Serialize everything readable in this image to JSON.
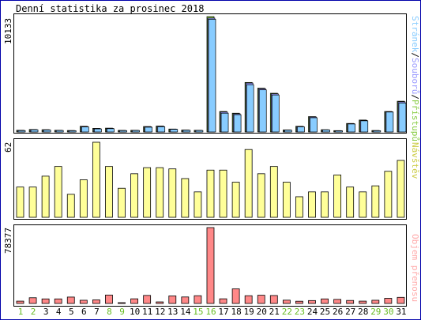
{
  "title": "Denní statistika za prosinec 2018",
  "colors": {
    "background": "#ffffff",
    "outer_border": "#0000aa",
    "panel_border": "#000000",
    "pages": "#88ccff",
    "files": "#9999ff",
    "hits": "#88cc44",
    "visits": "#ffff99",
    "volume": "#ff8888",
    "weekend_label": "#66bb22",
    "weekday_label": "#000000"
  },
  "chart_data": [
    {
      "type": "bar",
      "panel": "hits",
      "ymax_label": "10133",
      "ymax": 10133,
      "legend_right": [
        {
          "text": "Stránek",
          "color": "#88ccff"
        },
        {
          "text": "/",
          "color": "#000000"
        },
        {
          "text": "Souborů",
          "color": "#9999ff"
        },
        {
          "text": "/",
          "color": "#000000"
        },
        {
          "text": "Přístupů",
          "color": "#88cc44"
        }
      ],
      "categories": [
        "1",
        "2",
        "3",
        "4",
        "5",
        "6",
        "7",
        "8",
        "9",
        "10",
        "11",
        "12",
        "13",
        "14",
        "15",
        "16",
        "17",
        "18",
        "19",
        "20",
        "21",
        "22",
        "23",
        "24",
        "25",
        "26",
        "27",
        "28",
        "29",
        "30",
        "31"
      ],
      "series": [
        {
          "name": "Přístupů",
          "color": "#88cc44",
          "values": [
            150,
            220,
            200,
            150,
            130,
            500,
            320,
            340,
            140,
            150,
            480,
            520,
            260,
            170,
            150,
            10133,
            1800,
            1650,
            4350,
            3850,
            3400,
            180,
            500,
            1350,
            200,
            120,
            750,
            1050,
            130,
            1800,
            2700
          ]
        },
        {
          "name": "Souborů",
          "color": "#9999ff",
          "values": [
            140,
            210,
            190,
            140,
            120,
            480,
            300,
            320,
            130,
            140,
            460,
            500,
            250,
            160,
            140,
            10000,
            1750,
            1600,
            4300,
            3800,
            3350,
            170,
            480,
            1320,
            190,
            110,
            730,
            1020,
            120,
            1780,
            2650
          ]
        },
        {
          "name": "Stránek",
          "color": "#88ccff",
          "values": [
            120,
            190,
            170,
            130,
            110,
            440,
            270,
            290,
            120,
            130,
            420,
            460,
            230,
            150,
            130,
            9900,
            1650,
            1520,
            4150,
            3700,
            3250,
            160,
            450,
            1250,
            180,
            100,
            700,
            980,
            110,
            1750,
            2550
          ]
        }
      ]
    },
    {
      "type": "bar",
      "panel": "visits",
      "ymax_label": "62",
      "ymax": 62,
      "legend_right": [
        {
          "text": "Návštěv",
          "color": "#cccc44"
        }
      ],
      "categories": [
        "1",
        "2",
        "3",
        "4",
        "5",
        "6",
        "7",
        "8",
        "9",
        "10",
        "11",
        "12",
        "13",
        "14",
        "15",
        "16",
        "17",
        "18",
        "19",
        "20",
        "21",
        "22",
        "23",
        "24",
        "25",
        "26",
        "27",
        "28",
        "29",
        "30",
        "31"
      ],
      "series": [
        {
          "name": "Návštěv",
          "color": "#ffff99",
          "values": [
            25,
            25,
            34,
            42,
            19,
            31,
            62,
            42,
            24,
            36,
            41,
            41,
            40,
            32,
            21,
            39,
            39,
            29,
            56,
            36,
            42,
            29,
            17,
            21,
            21,
            35,
            25,
            21,
            26,
            38,
            47
          ]
        }
      ]
    },
    {
      "type": "bar",
      "panel": "volume",
      "ymax_label": "78377",
      "ymax": 78377,
      "legend_right": [
        {
          "text": "Objem přenosu",
          "color": "#ffaaaa"
        }
      ],
      "categories": [
        "1",
        "2",
        "3",
        "4",
        "5",
        "6",
        "7",
        "8",
        "9",
        "10",
        "11",
        "12",
        "13",
        "14",
        "15",
        "16",
        "17",
        "18",
        "19",
        "20",
        "21",
        "22",
        "23",
        "24",
        "25",
        "26",
        "27",
        "28",
        "29",
        "30",
        "31"
      ],
      "series": [
        {
          "name": "Objem přenosu",
          "color": "#ff8888",
          "values": [
            2400,
            5900,
            4700,
            4700,
            6600,
            3300,
            3700,
            8700,
            400,
            4800,
            8300,
            1600,
            7800,
            6700,
            8000,
            78377,
            4800,
            15100,
            8000,
            8500,
            8200,
            3400,
            2300,
            3000,
            4700,
            4200,
            3100,
            2400,
            3300,
            5300,
            6300
          ]
        }
      ]
    }
  ],
  "x_labels": {
    "days": [
      "1",
      "2",
      "3",
      "4",
      "5",
      "6",
      "7",
      "8",
      "9",
      "10",
      "11",
      "12",
      "13",
      "14",
      "15",
      "16",
      "17",
      "18",
      "19",
      "20",
      "21",
      "22",
      "23",
      "24",
      "25",
      "26",
      "27",
      "28",
      "29",
      "30",
      "31"
    ],
    "weekend": [
      1,
      2,
      8,
      9,
      15,
      16,
      22,
      23,
      29,
      30
    ]
  }
}
